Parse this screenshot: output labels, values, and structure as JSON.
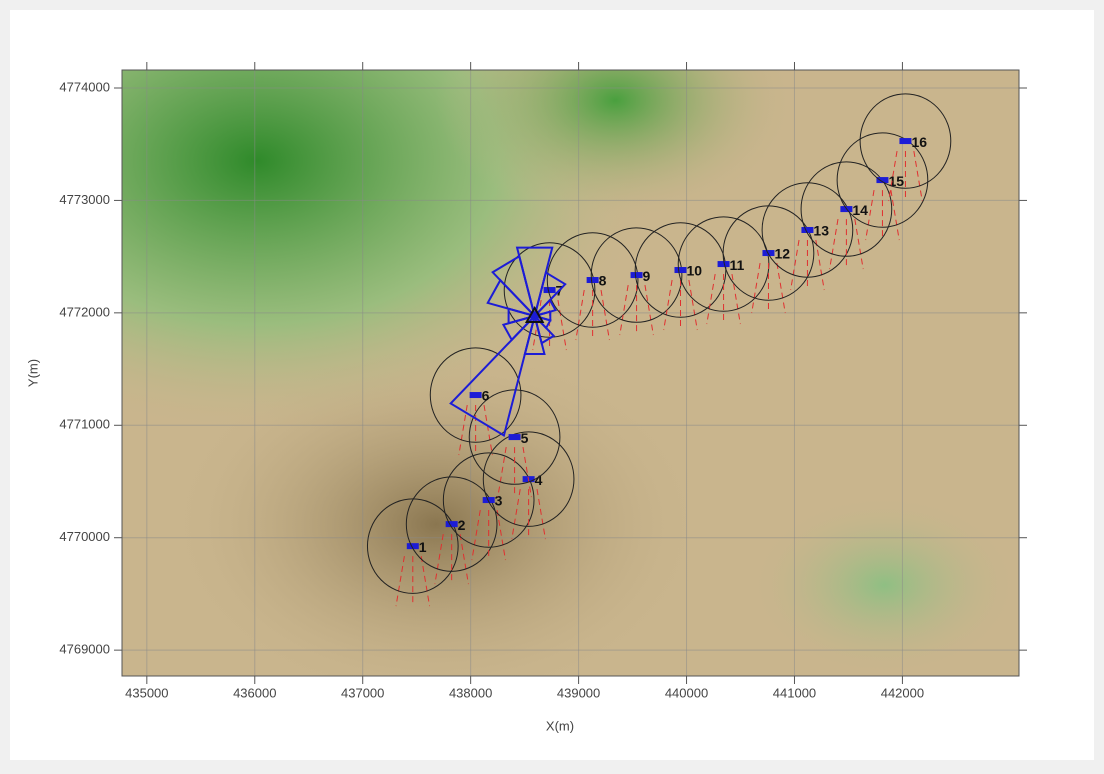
{
  "chart_data": {
    "type": "scatter",
    "x_label": "X(m)",
    "y_label": "Y(m)",
    "xlim": [
      434770,
      443080
    ],
    "ylim": [
      4768770,
      4774160
    ],
    "xticks": [
      435000,
      436000,
      437000,
      438000,
      439000,
      440000,
      441000,
      442000
    ],
    "yticks": [
      4769000,
      4770000,
      4771000,
      4772000,
      4773000,
      4774000
    ],
    "grid": true,
    "marker_color": "#1c1cd6",
    "circle_radius": 420,
    "points": {
      "labels": [
        "1",
        "2",
        "3",
        "4",
        "5",
        "6",
        "7",
        "8",
        "9",
        "10",
        "11",
        "12",
        "13",
        "14",
        "15",
        "16"
      ],
      "x": [
        437464,
        437824,
        438167,
        438537,
        438407,
        438046,
        438731,
        439130,
        439537,
        439944,
        440343,
        440759,
        441120,
        441481,
        441815,
        442028
      ],
      "y": [
        4769925,
        4770121,
        4770335,
        4770521,
        4770895,
        4771269,
        4772203,
        4772292,
        4772336,
        4772381,
        4772434,
        4772532,
        4772737,
        4772923,
        4773181,
        4773528
      ]
    },
    "mast": {
      "x": 438593,
      "y": 4771972,
      "wind_rose_color": "#1c1cd6",
      "wind_rose": [
        630,
        400,
        200,
        150,
        150,
        250,
        350,
        1100,
        300,
        250,
        450,
        550
      ]
    }
  }
}
